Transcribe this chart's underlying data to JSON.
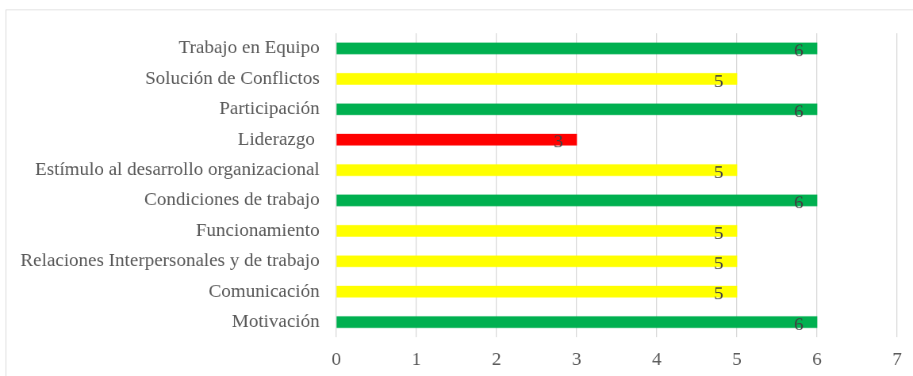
{
  "chart_data": {
    "type": "bar",
    "orientation": "horizontal",
    "categories": [
      "Trabajo en Equipo",
      "Solución de Conflictos",
      "Participación",
      "Liderazgo ",
      "Estímulo al desarrollo organizacional",
      "Condiciones de trabajo",
      "Funcionamiento",
      "Relaciones Interpersonales y de trabajo",
      "Comunicación",
      "Motivación"
    ],
    "values": [
      6,
      5,
      6,
      3,
      5,
      6,
      5,
      5,
      5,
      6
    ],
    "colors": [
      "#00b050",
      "#ffff00",
      "#00b050",
      "#ff0000",
      "#ffff00",
      "#00b050",
      "#ffff00",
      "#ffff00",
      "#ffff00",
      "#00b050"
    ],
    "xlim": [
      0,
      7
    ],
    "xticks": [
      0,
      1,
      2,
      3,
      4,
      5,
      6,
      7
    ],
    "grid": "x",
    "data_labels": true
  }
}
